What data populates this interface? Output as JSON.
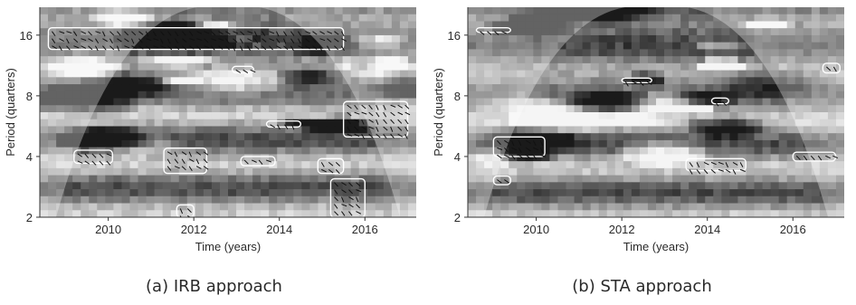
{
  "chart_data": [
    {
      "type": "heatmap",
      "caption": "(a) IRB approach",
      "xlabel": "Time (years)",
      "ylabel": "Period (quarters)",
      "xlim": [
        2008.4,
        2017.2
      ],
      "ylim": [
        2,
        22
      ],
      "y_scale": "log2",
      "x_ticks": [
        2010,
        2012,
        2014,
        2016
      ],
      "x_tick_labels": [
        "2010",
        "2012",
        "2014",
        "2016"
      ],
      "y_ticks": [
        2,
        4,
        8,
        16
      ],
      "y_tick_labels": [
        "2",
        "4",
        "8",
        "16"
      ],
      "grid": false,
      "colormap": "grayscale",
      "significance_regions": [
        {
          "x": [
            2009.2,
            2010.1
          ],
          "y": [
            3.7,
            4.3
          ]
        },
        {
          "x": [
            2011.3,
            2012.3
          ],
          "y": [
            3.3,
            4.4
          ]
        },
        {
          "x": [
            2013.1,
            2013.9
          ],
          "y": [
            3.6,
            4.0
          ]
        },
        {
          "x": [
            2014.9,
            2015.5
          ],
          "y": [
            3.3,
            3.9
          ]
        },
        {
          "x": [
            2015.5,
            2017.0
          ],
          "y": [
            5.0,
            7.5
          ]
        },
        {
          "x": [
            2015.2,
            2016.0
          ],
          "y": [
            2.0,
            3.1
          ]
        },
        {
          "x": [
            2013.7,
            2014.5
          ],
          "y": [
            5.6,
            6.0
          ]
        },
        {
          "x": [
            2012.9,
            2013.4
          ],
          "y": [
            10.4,
            11.2
          ]
        },
        {
          "x": [
            2008.6,
            2015.5
          ],
          "y": [
            13.6,
            17.4
          ]
        },
        {
          "x": [
            2011.6,
            2012.0
          ],
          "y": [
            2.0,
            2.3
          ]
        }
      ]
    },
    {
      "type": "heatmap",
      "caption": "(b) STA approach",
      "xlabel": "Time (years)",
      "ylabel": "Period (quarters)",
      "xlim": [
        2008.4,
        2017.2
      ],
      "ylim": [
        2,
        22
      ],
      "y_scale": "log2",
      "x_ticks": [
        2010,
        2012,
        2014,
        2016
      ],
      "x_tick_labels": [
        "2010",
        "2012",
        "2014",
        "2016"
      ],
      "y_ticks": [
        2,
        4,
        8,
        16
      ],
      "y_tick_labels": [
        "2",
        "4",
        "8",
        "16"
      ],
      "grid": false,
      "colormap": "grayscale",
      "significance_regions": [
        {
          "x": [
            2009.0,
            2010.2
          ],
          "y": [
            4.0,
            5.0
          ]
        },
        {
          "x": [
            2009.0,
            2009.4
          ],
          "y": [
            2.9,
            3.2
          ]
        },
        {
          "x": [
            2012.0,
            2012.7
          ],
          "y": [
            9.3,
            9.8
          ]
        },
        {
          "x": [
            2013.5,
            2014.9
          ],
          "y": [
            3.4,
            3.9
          ]
        },
        {
          "x": [
            2014.1,
            2014.5
          ],
          "y": [
            7.3,
            7.8
          ]
        },
        {
          "x": [
            2016.0,
            2017.0
          ],
          "y": [
            3.8,
            4.2
          ]
        },
        {
          "x": [
            2008.6,
            2009.4
          ],
          "y": [
            16.5,
            17.4
          ]
        },
        {
          "x": [
            2016.7,
            2017.1
          ],
          "y": [
            10.4,
            11.6
          ]
        }
      ]
    }
  ]
}
